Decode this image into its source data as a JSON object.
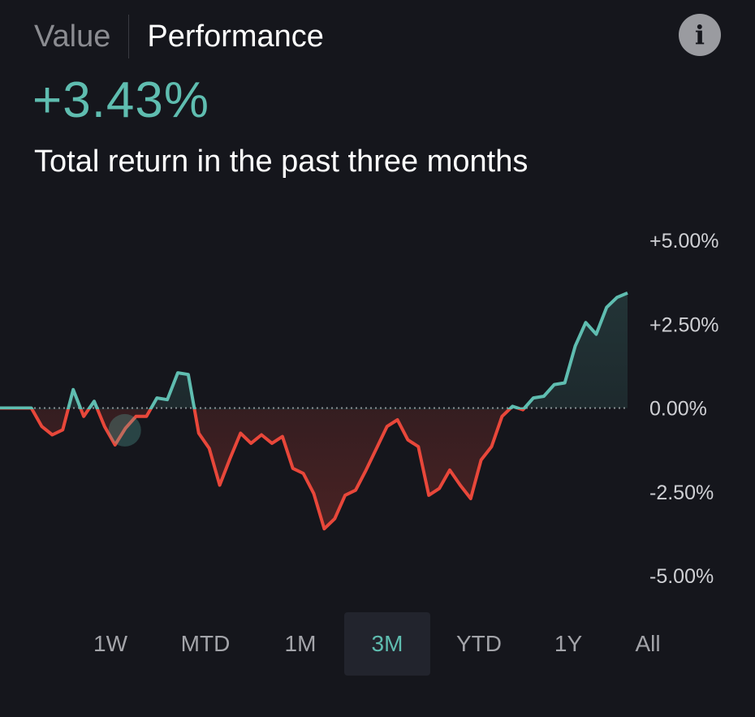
{
  "header": {
    "tabs": [
      {
        "label": "Value",
        "active": false
      },
      {
        "label": "Performance",
        "active": true
      }
    ],
    "info_icon": "info-icon"
  },
  "headline": "+3.43%",
  "subtitle": "Total return in the past three months",
  "ranges": [
    "1W",
    "MTD",
    "1M",
    "3M",
    "YTD",
    "1Y",
    "All"
  ],
  "selected_range": "3M",
  "colors": {
    "background": "#15161c",
    "positive": "#5fbdb0",
    "negative": "#e8473a",
    "axis_text": "#cfd0d4"
  },
  "chart_data": {
    "type": "line",
    "ylim": [
      -5,
      5
    ],
    "yticks": [
      "+5.00%",
      "+2.50%",
      "0.00%",
      "-2.50%",
      "-5.00%"
    ],
    "baseline": 0,
    "marker_index": 11,
    "values": [
      0,
      0,
      0,
      0,
      -0.55,
      -0.8,
      -0.65,
      0.55,
      -0.25,
      0.2,
      -0.55,
      -1.1,
      -0.6,
      -0.25,
      -0.25,
      0.3,
      0.25,
      1.05,
      1.0,
      -0.75,
      -1.2,
      -2.3,
      -1.5,
      -0.75,
      -1.05,
      -0.8,
      -1.05,
      -0.85,
      -1.8,
      -1.95,
      -2.55,
      -3.6,
      -3.3,
      -2.6,
      -2.45,
      -1.85,
      -1.2,
      -0.55,
      -0.35,
      -0.95,
      -1.15,
      -2.6,
      -2.4,
      -1.85,
      -2.3,
      -2.7,
      -1.55,
      -1.15,
      -0.25,
      0.05,
      -0.05,
      0.3,
      0.35,
      0.7,
      0.75,
      1.85,
      2.55,
      2.2,
      3.0,
      3.3,
      3.43
    ]
  }
}
